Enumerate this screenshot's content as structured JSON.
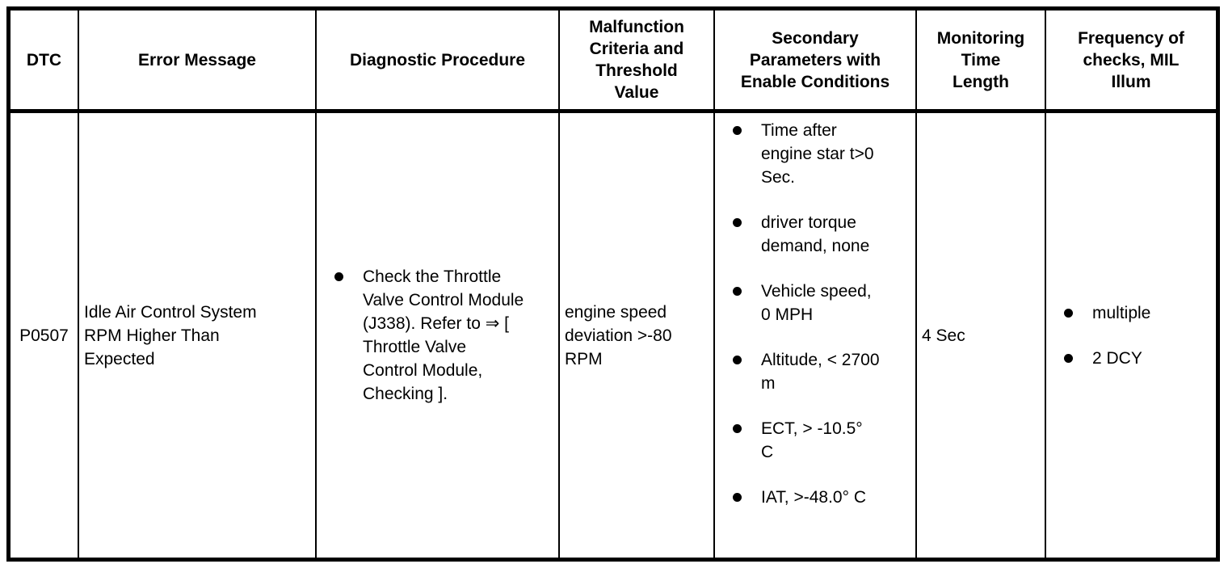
{
  "table": {
    "colors": {
      "border": "#000000",
      "text": "#000000",
      "background": "#ffffff"
    },
    "headers": {
      "dtc": "DTC",
      "error_message": "Error Message",
      "diagnostic_procedure": "Diagnostic Procedure",
      "malfunction_criteria": "Malfunction\nCriteria and\nThreshold\nValue",
      "secondary_parameters": "Secondary\nParameters with\nEnable Conditions",
      "monitoring_time": "Monitoring\nTime\nLength",
      "frequency": "Frequency of\nchecks, MIL\nIllum"
    },
    "row": {
      "dtc": "P0507",
      "error_message": "Idle Air Control System\nRPM Higher Than\nExpected",
      "diagnostic_procedure": [
        "Check the Throttle\nValve Control Module\n(J338). Refer to ⇒ [\nThrottle Valve\nControl Module,\nChecking ]."
      ],
      "malfunction_criteria": "engine speed\ndeviation >-80\nRPM",
      "secondary_parameters": [
        "Time after\nengine star t>0\nSec.",
        "driver torque\ndemand, none",
        "Vehicle speed,\n0 MPH",
        "Altitude, < 2700\nm",
        "ECT, > -10.5°\nC",
        "IAT, >-48.0° C"
      ],
      "monitoring_time": "4 Sec",
      "frequency": [
        "multiple",
        "2 DCY"
      ]
    }
  }
}
